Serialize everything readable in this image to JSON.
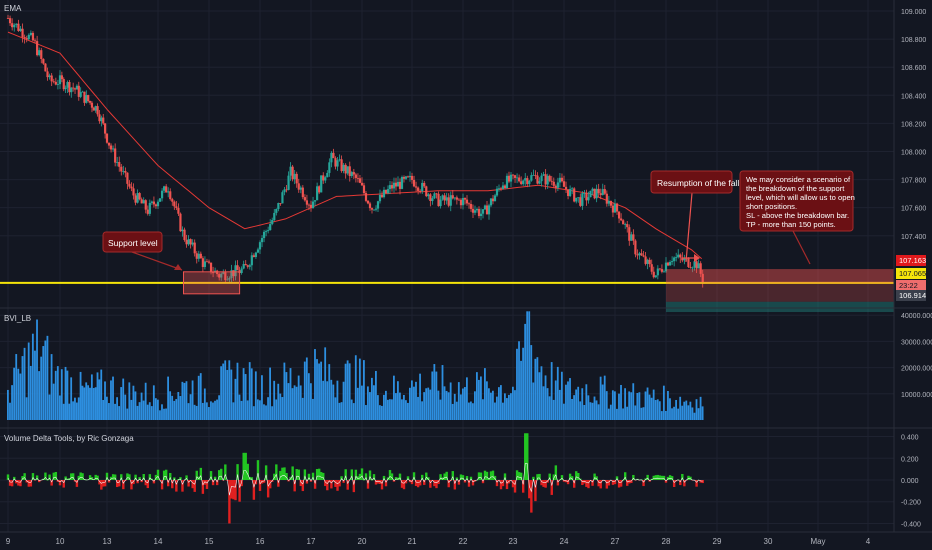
{
  "chart_data": [
    {
      "type": "candlestick",
      "panel": "price",
      "title": "EMA",
      "y_ticks": [
        "109.000",
        "108.800",
        "108.600",
        "108.400",
        "108.200",
        "108.000",
        "107.800",
        "107.600",
        "107.400"
      ],
      "ylim": [
        106.9,
        109.05
      ],
      "x_labels": [
        "9",
        "10",
        "13",
        "14",
        "15",
        "16",
        "17",
        "20",
        "21",
        "22",
        "23",
        "24",
        "27",
        "28",
        "29",
        "30",
        "May",
        "4"
      ],
      "close_trace": [
        {
          "d": 0,
          "v": 108.95
        },
        {
          "d": 0.5,
          "v": 108.78
        },
        {
          "d": 0.8,
          "v": 108.5
        },
        {
          "d": 1.0,
          "v": 108.5
        },
        {
          "d": 1.3,
          "v": 108.45
        },
        {
          "d": 1.8,
          "v": 108.3
        },
        {
          "d": 2.1,
          "v": 108.0
        },
        {
          "d": 2.5,
          "v": 107.7
        },
        {
          "d": 2.8,
          "v": 107.58
        },
        {
          "d": 3.2,
          "v": 107.75
        },
        {
          "d": 3.5,
          "v": 107.4
        },
        {
          "d": 3.9,
          "v": 107.2
        },
        {
          "d": 4.2,
          "v": 107.12
        },
        {
          "d": 4.7,
          "v": 107.16
        },
        {
          "d": 4.9,
          "v": 107.3
        },
        {
          "d": 5.3,
          "v": 107.55
        },
        {
          "d": 5.6,
          "v": 107.85
        },
        {
          "d": 6.0,
          "v": 107.62
        },
        {
          "d": 6.4,
          "v": 107.95
        },
        {
          "d": 6.9,
          "v": 107.8
        },
        {
          "d": 7.2,
          "v": 107.6
        },
        {
          "d": 7.6,
          "v": 107.75
        },
        {
          "d": 8.0,
          "v": 107.8
        },
        {
          "d": 8.5,
          "v": 107.65
        },
        {
          "d": 9.0,
          "v": 107.65
        },
        {
          "d": 9.4,
          "v": 107.55
        },
        {
          "d": 9.8,
          "v": 107.78
        },
        {
          "d": 10.4,
          "v": 107.82
        },
        {
          "d": 10.9,
          "v": 107.78
        },
        {
          "d": 11.3,
          "v": 107.65
        },
        {
          "d": 11.7,
          "v": 107.72
        },
        {
          "d": 12.1,
          "v": 107.55
        },
        {
          "d": 12.4,
          "v": 107.3
        },
        {
          "d": 12.8,
          "v": 107.12
        },
        {
          "d": 13.1,
          "v": 107.25
        },
        {
          "d": 13.6,
          "v": 107.2
        },
        {
          "d": 13.75,
          "v": 107.07
        }
      ],
      "ema_trace": [
        {
          "d": 0,
          "v": 108.85
        },
        {
          "d": 1.0,
          "v": 108.7
        },
        {
          "d": 2.0,
          "v": 108.3
        },
        {
          "d": 3.0,
          "v": 107.9
        },
        {
          "d": 4.0,
          "v": 107.6
        },
        {
          "d": 4.7,
          "v": 107.45
        },
        {
          "d": 5.5,
          "v": 107.52
        },
        {
          "d": 6.5,
          "v": 107.68
        },
        {
          "d": 7.5,
          "v": 107.7
        },
        {
          "d": 8.5,
          "v": 107.72
        },
        {
          "d": 9.5,
          "v": 107.72
        },
        {
          "d": 10.5,
          "v": 107.76
        },
        {
          "d": 11.5,
          "v": 107.7
        },
        {
          "d": 12.2,
          "v": 107.6
        },
        {
          "d": 12.8,
          "v": 107.45
        },
        {
          "d": 13.5,
          "v": 107.3
        },
        {
          "d": 13.75,
          "v": 107.22
        }
      ],
      "support_level": 107.065,
      "price_tags": {
        "upper": "107.163",
        "current": "107.065",
        "countdown": "23:22",
        "lower": "106.914"
      },
      "colors": {
        "up": "#26a69a",
        "down": "#ef5350",
        "ema": "#e53935",
        "support": "#f5e50a",
        "background": "#131722"
      },
      "annotations": [
        {
          "id": "support",
          "text": "Support level"
        },
        {
          "id": "resumption",
          "text": "Resumption of the fall"
        },
        {
          "id": "scenario",
          "lines": [
            "We may consider a scenario of",
            "the breakdown of the support",
            "level, which will allow us to open",
            "short positions.",
            "SL - above the breakdown bar.",
            "TP - more than 150 points."
          ]
        }
      ]
    },
    {
      "type": "bar",
      "panel": "volume",
      "title": "BVI_LB",
      "y_ticks": [
        "40000.000",
        "30000.000",
        "20000.000",
        "10000.000"
      ],
      "ylim": [
        0,
        42000
      ],
      "color": "#2d8fe0",
      "profile": [
        {
          "d": 0,
          "v": 13000
        },
        {
          "d": 0.3,
          "v": 22000
        },
        {
          "d": 0.6,
          "v": 30000
        },
        {
          "d": 0.9,
          "v": 18000
        },
        {
          "d": 1.2,
          "v": 16000
        },
        {
          "d": 1.5,
          "v": 12000
        },
        {
          "d": 2.0,
          "v": 14000
        },
        {
          "d": 2.5,
          "v": 11000
        },
        {
          "d": 3.0,
          "v": 10000
        },
        {
          "d": 3.5,
          "v": 14000
        },
        {
          "d": 4.0,
          "v": 12000
        },
        {
          "d": 4.5,
          "v": 18000
        },
        {
          "d": 5.0,
          "v": 14000
        },
        {
          "d": 5.5,
          "v": 16000
        },
        {
          "d": 6.0,
          "v": 22000
        },
        {
          "d": 6.5,
          "v": 18000
        },
        {
          "d": 7.0,
          "v": 17000
        },
        {
          "d": 7.5,
          "v": 12000
        },
        {
          "d": 8.0,
          "v": 14000
        },
        {
          "d": 8.5,
          "v": 15000
        },
        {
          "d": 9.0,
          "v": 13000
        },
        {
          "d": 9.5,
          "v": 14000
        },
        {
          "d": 10.0,
          "v": 13000
        },
        {
          "d": 10.3,
          "v": 35000
        },
        {
          "d": 10.6,
          "v": 20000
        },
        {
          "d": 11.0,
          "v": 12000
        },
        {
          "d": 11.5,
          "v": 13000
        },
        {
          "d": 12.0,
          "v": 11000
        },
        {
          "d": 12.5,
          "v": 10000
        },
        {
          "d": 13.0,
          "v": 9000
        },
        {
          "d": 13.5,
          "v": 8000
        },
        {
          "d": 13.75,
          "v": 7000
        }
      ]
    },
    {
      "type": "area",
      "panel": "volume-delta",
      "title": "Volume Delta Tools, by Ric Gonzaga",
      "y_ticks": [
        "0.400",
        "0.200",
        "0.000",
        "-0.200",
        "-0.400"
      ],
      "ylim": [
        -0.46,
        0.46
      ],
      "colors": {
        "positive": "#22c522",
        "negative": "#e02020",
        "line": "#f2f2f2"
      },
      "amplitude": [
        {
          "d": 0,
          "v": 0.06
        },
        {
          "d": 1.0,
          "v": 0.08
        },
        {
          "d": 2.0,
          "v": 0.09
        },
        {
          "d": 3.0,
          "v": 0.1
        },
        {
          "d": 4.0,
          "v": 0.14
        },
        {
          "d": 4.5,
          "v": 0.22
        },
        {
          "d": 5.0,
          "v": 0.18
        },
        {
          "d": 6.0,
          "v": 0.12
        },
        {
          "d": 7.0,
          "v": 0.11
        },
        {
          "d": 8.0,
          "v": 0.08
        },
        {
          "d": 9.0,
          "v": 0.1
        },
        {
          "d": 10.0,
          "v": 0.09
        },
        {
          "d": 10.3,
          "v": 0.3
        },
        {
          "d": 11.0,
          "v": 0.09
        },
        {
          "d": 12.0,
          "v": 0.08
        },
        {
          "d": 13.0,
          "v": 0.07
        },
        {
          "d": 13.75,
          "v": 0.06
        }
      ],
      "spikes": [
        {
          "d": 4.4,
          "v": -0.4
        },
        {
          "d": 4.7,
          "v": 0.25
        },
        {
          "d": 10.25,
          "v": 0.43
        },
        {
          "d": 10.35,
          "v": -0.3
        }
      ]
    }
  ]
}
